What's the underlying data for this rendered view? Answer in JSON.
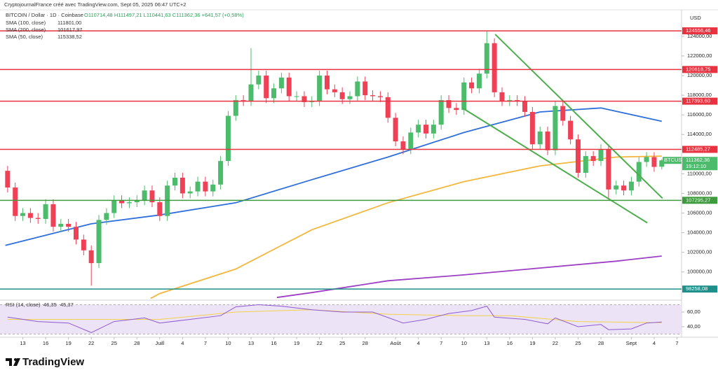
{
  "chart_data": {
    "type": "candlestick",
    "credit": "CryptojournalFrance créé avec TradingView.com, Sept 05, 2025 06:47 UTC+2",
    "symbol_title": "BITCOIN / Dollar · 1D · Coinbase",
    "ohlc_text": "O110714,48 H111497,21 L110441,63 C111362,36 +641,57 (+0,58%)",
    "currency": "USD",
    "brand": "TradingView",
    "up_color": "#4cbb6b",
    "down_color": "#ef4056",
    "grid": false,
    "xlim": [
      -1,
      88.6
    ],
    "ylim": [
      97200,
      126700
    ],
    "xticks": [
      {
        "value": 2,
        "label": "13"
      },
      {
        "value": 5,
        "label": "16"
      },
      {
        "value": 8,
        "label": "19"
      },
      {
        "value": 11,
        "label": "22"
      },
      {
        "value": 14,
        "label": "25"
      },
      {
        "value": 17,
        "label": "28"
      },
      {
        "value": 20,
        "label": "Juill"
      },
      {
        "value": 23,
        "label": "4"
      },
      {
        "value": 26,
        "label": "7"
      },
      {
        "value": 29,
        "label": "10"
      },
      {
        "value": 32,
        "label": "13"
      },
      {
        "value": 35,
        "label": "16"
      },
      {
        "value": 38,
        "label": "19"
      },
      {
        "value": 41,
        "label": "22"
      },
      {
        "value": 44,
        "label": "25"
      },
      {
        "value": 47,
        "label": "28"
      },
      {
        "value": 51,
        "label": "Août"
      },
      {
        "value": 54,
        "label": "4"
      },
      {
        "value": 57,
        "label": "7"
      },
      {
        "value": 60,
        "label": "10"
      },
      {
        "value": 63,
        "label": "13"
      },
      {
        "value": 66,
        "label": "16"
      },
      {
        "value": 69,
        "label": "19"
      },
      {
        "value": 72,
        "label": "22"
      },
      {
        "value": 75,
        "label": "25"
      },
      {
        "value": 78,
        "label": "28"
      },
      {
        "value": 82,
        "label": "Sept"
      },
      {
        "value": 85,
        "label": "4"
      },
      {
        "value": 88,
        "label": "7"
      }
    ],
    "yticks": [
      {
        "value": 100000,
        "label": "100000,00"
      },
      {
        "value": 102000,
        "label": "102000,00"
      },
      {
        "value": 104000,
        "label": "104000,00"
      },
      {
        "value": 106000,
        "label": "106000,00"
      },
      {
        "value": 108000,
        "label": "108000,00"
      },
      {
        "value": 110000,
        "label": "110000,00"
      },
      {
        "value": 114000,
        "label": "114000,00"
      },
      {
        "value": 116000,
        "label": "116000,00"
      },
      {
        "value": 118000,
        "label": "118000,00"
      },
      {
        "value": 120000,
        "label": "120000,00"
      },
      {
        "value": 122000,
        "label": "122000,00"
      },
      {
        "value": 124000,
        "label": "124000,00"
      }
    ],
    "open": [
      110300,
      108600,
      105700,
      106000,
      105500,
      105400,
      106900,
      104600,
      104900,
      104600,
      103300,
      102200,
      100900,
      105300,
      106000,
      107300,
      107000,
      107100,
      107300,
      108300,
      107100,
      105700,
      108800,
      109600,
      108000,
      108200,
      109200,
      108200,
      108900,
      111300,
      115900,
      117500,
      117400,
      119100,
      120000,
      117700,
      118700,
      119800,
      117900,
      117900,
      117300,
      117400,
      120000,
      118600,
      118300,
      117600,
      117900,
      119400,
      118000,
      117900,
      117800,
      115700,
      113300,
      112500,
      114200,
      115000,
      114100,
      115000,
      117500,
      116700,
      116500,
      119300,
      118700,
      120200,
      123300,
      118300,
      117400,
      117500,
      117400,
      116300,
      113000,
      114300,
      112400,
      116900,
      115400,
      113500,
      110100,
      111800,
      111300,
      112500,
      108400,
      108800,
      108300,
      109200,
      111200,
      111700,
      110714.48
    ],
    "high": [
      110800,
      109100,
      106500,
      106500,
      106000,
      107400,
      107400,
      105400,
      105400,
      105100,
      103800,
      102700,
      105800,
      106500,
      107800,
      107800,
      107600,
      107800,
      108800,
      108800,
      107600,
      109300,
      110100,
      110100,
      108700,
      109700,
      109700,
      109400,
      111800,
      116400,
      118000,
      118000,
      122800,
      120500,
      120500,
      119200,
      120300,
      120300,
      118400,
      118400,
      117900,
      120500,
      120500,
      119100,
      118800,
      118400,
      119900,
      119900,
      118500,
      118400,
      118300,
      116200,
      113800,
      114700,
      115500,
      115500,
      115500,
      118000,
      118000,
      117200,
      119800,
      119800,
      120700,
      124500,
      123800,
      118800,
      118000,
      118000,
      117900,
      116800,
      114800,
      114800,
      117400,
      117400,
      115900,
      114000,
      112300,
      112300,
      113000,
      113000,
      109300,
      109300,
      109700,
      111700,
      112200,
      112200,
      111497.21
    ],
    "low": [
      108100,
      105200,
      105200,
      105000,
      104900,
      104900,
      104100,
      104100,
      104100,
      102800,
      101700,
      98600,
      100400,
      104800,
      105500,
      106500,
      106500,
      106600,
      106800,
      106600,
      105200,
      105200,
      108300,
      107500,
      107500,
      107700,
      107700,
      107700,
      108400,
      110800,
      115400,
      116900,
      116900,
      118600,
      117200,
      117200,
      118200,
      117400,
      117400,
      116800,
      116800,
      116900,
      118100,
      117800,
      117100,
      117100,
      117400,
      117500,
      117400,
      117300,
      115200,
      112800,
      112000,
      112000,
      113700,
      113600,
      113600,
      114500,
      116200,
      116000,
      116000,
      118200,
      118200,
      119700,
      117800,
      116900,
      116900,
      116900,
      115800,
      112500,
      112500,
      111900,
      111900,
      114900,
      113000,
      109600,
      109600,
      110800,
      110800,
      107500,
      107900,
      107800,
      107800,
      108700,
      110700,
      110200,
      110441.63
    ],
    "close": [
      108600,
      105700,
      106000,
      105500,
      105400,
      106900,
      104600,
      104900,
      104600,
      103300,
      102200,
      100900,
      105300,
      106000,
      107300,
      107000,
      107100,
      107300,
      108300,
      107100,
      105700,
      108800,
      109600,
      108000,
      108200,
      109200,
      108200,
      108900,
      111300,
      115900,
      117500,
      117400,
      119100,
      120000,
      117700,
      118700,
      119800,
      117900,
      117900,
      117300,
      117400,
      120000,
      118600,
      118300,
      117600,
      117900,
      119400,
      118000,
      117900,
      117800,
      115700,
      113300,
      112500,
      114200,
      115000,
      114100,
      115000,
      117500,
      116700,
      116500,
      119300,
      118700,
      120200,
      123300,
      118300,
      117400,
      117500,
      117400,
      116300,
      113000,
      114300,
      112400,
      116900,
      115400,
      113500,
      110100,
      111800,
      111300,
      112500,
      108400,
      108800,
      108300,
      109200,
      111200,
      111700,
      110700,
      111362.36
    ],
    "series": [
      {
        "name": "SMA (100, close)",
        "legend_value": "111801,00",
        "color": "#f2b73c",
        "x": [
          18.8,
          20,
          30,
          40,
          50,
          60,
          70,
          80,
          86
        ],
        "values": [
          97300,
          97800,
          100300,
          104300,
          107050,
          109200,
          110800,
          111700,
          111801
        ]
      },
      {
        "name": "SMA (200, close)",
        "legend_value": "101617,97",
        "color": "#9c3fc4",
        "x": [
          35.4,
          40,
          50,
          60,
          70,
          80,
          86
        ],
        "values": [
          97400,
          97900,
          99100,
          99700,
          100400,
          101100,
          101617.97
        ]
      },
      {
        "name": "SMA (50, close)",
        "legend_value": "115338,52",
        "color": "#2f6fdc",
        "x": [
          -0.3,
          11,
          20,
          30,
          40,
          50,
          60,
          70,
          78,
          86
        ],
        "values": [
          102700,
          104900,
          105800,
          107050,
          109400,
          111700,
          114200,
          116300,
          116700,
          115338.52
        ]
      }
    ],
    "levels": [
      {
        "value": 124556.46,
        "label": "124556,46",
        "color": "#e8323f"
      },
      {
        "value": 120618.75,
        "label": "120618,75",
        "color": "#e8323f"
      },
      {
        "value": 117393.6,
        "label": "117393,60",
        "color": "#e8323f"
      },
      {
        "value": 112485.27,
        "label": "112485,27",
        "color": "#e8323f"
      },
      {
        "value": 107295.27,
        "label": "107295,27",
        "color": "#3d9a3d"
      },
      {
        "value": 98258.08,
        "label": "98258,08",
        "color": "#1f8f8a"
      }
    ],
    "trendlines": [
      {
        "x": [
          64.1,
          86.1
        ],
        "values": [
          124200,
          107500
        ],
        "color": "#4cae4c"
      },
      {
        "x": [
          59.8,
          84.1
        ],
        "values": [
          116700,
          105000
        ],
        "color": "#4cae4c"
      }
    ],
    "price_tag": {
      "symbol": "BTCUSD",
      "price": "111362,36",
      "countdown": "19:12:10",
      "color": "#4cbb6b"
    },
    "rsi": {
      "name": "RSI (14, close)",
      "legend_value": "46,35",
      "ma_legend_value": "45,37",
      "color": "#8e5bd0",
      "ma_color": "#f2d24a",
      "ylim": [
        25.7,
        75.2
      ],
      "yticks": [
        {
          "value": 40,
          "label": "40,00"
        },
        {
          "value": 60,
          "label": "60,00"
        }
      ],
      "band": [
        30,
        70
      ],
      "x": [
        0,
        4,
        8,
        11,
        14,
        18,
        20,
        24,
        28,
        30,
        33,
        36,
        40,
        44,
        48,
        52,
        55,
        58,
        61,
        63,
        64,
        68,
        71,
        72,
        75,
        78,
        79,
        82,
        84,
        86
      ],
      "values": [
        53,
        47,
        45,
        32,
        47,
        52,
        45,
        50,
        55,
        67,
        70,
        68,
        63,
        60,
        60,
        45,
        50,
        58,
        62,
        68,
        53,
        50,
        44,
        52,
        40,
        43,
        36,
        37,
        45,
        46.35
      ],
      "ma_x": [
        0,
        20,
        30,
        40,
        50,
        60,
        66,
        75,
        86
      ],
      "ma_values": [
        50,
        50,
        60,
        63,
        57,
        55,
        55,
        47,
        45.37
      ]
    }
  }
}
